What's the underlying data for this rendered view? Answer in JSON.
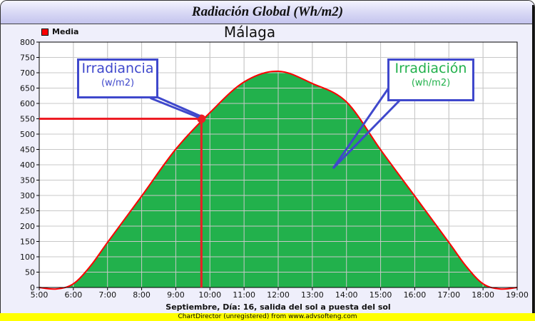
{
  "window": {
    "title": "Radiación Global (Wh/m2)"
  },
  "footer": {
    "text": "ChartDirector (unregistered) from www.advsofteng.com"
  },
  "legend": {
    "label": "Media",
    "color": "#ff0000"
  },
  "callouts": {
    "irradiancia": {
      "title": "Irradiancia",
      "unit": "(w/m2)",
      "color": "#3f48cc"
    },
    "irradiacion": {
      "title": "Irradiación",
      "unit": "(wh/m2)",
      "color": "#22b14c"
    }
  },
  "chart_data": {
    "type": "area",
    "title": "Málaga",
    "xlabel": "Septiembre, Día: 16, salida del sol a puesta del sol",
    "ylabel": "",
    "x_ticks": [
      "5:00",
      "6:00",
      "7:00",
      "8:00",
      "9:00",
      "10:00",
      "11:00",
      "12:00",
      "13:00",
      "14:00",
      "15:00",
      "16:00",
      "17:00",
      "18:00",
      "19:00"
    ],
    "y_ticks": [
      0,
      50,
      100,
      150,
      200,
      250,
      300,
      350,
      400,
      450,
      500,
      550,
      600,
      650,
      700,
      750,
      800
    ],
    "ylim": [
      0,
      800
    ],
    "grid": true,
    "legend_position": "top-left",
    "series": [
      {
        "name": "Media",
        "line_color": "#ff0000",
        "fill_color": "#22b14c",
        "x_hours": [
          5.0,
          5.5,
          6.0,
          6.5,
          7.0,
          8.0,
          9.0,
          10.0,
          11.0,
          12.0,
          13.0,
          14.0,
          15.0,
          16.0,
          17.0,
          17.5,
          18.0,
          18.5,
          19.0
        ],
        "values": [
          0,
          -5,
          12,
          70,
          147,
          298,
          451,
          570,
          670,
          705,
          665,
          605,
          449,
          298,
          147,
          70,
          12,
          -5,
          0
        ]
      }
    ],
    "annotations": [
      {
        "type": "point",
        "x": "9:45",
        "y": 550,
        "label": "Irradiancia (w/m2)",
        "guide_lines": true
      },
      {
        "type": "area-label",
        "label": "Irradiación (wh/m2)"
      }
    ]
  }
}
